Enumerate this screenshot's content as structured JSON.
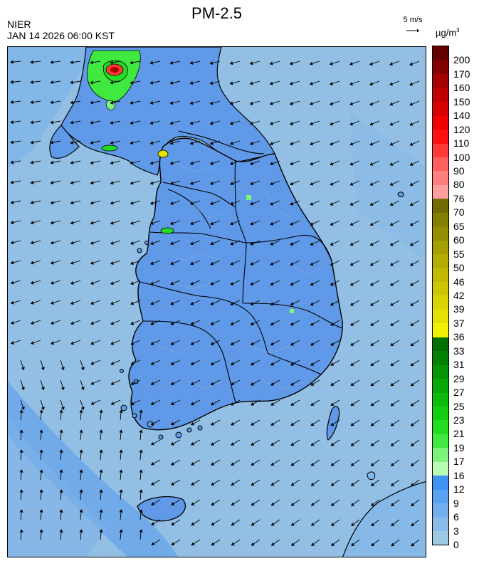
{
  "header": {
    "title": "PM-2.5",
    "agency": "NIER",
    "timestamp": "JAN 14 2026 06:00 KST",
    "wind_scale_label": "5 m/s",
    "unit_base": "µg/m",
    "unit_exp": "3"
  },
  "legend": {
    "levels": [
      "0",
      "3",
      "6",
      "9",
      "12",
      "16",
      "17",
      "19",
      "21",
      "23",
      "25",
      "27",
      "29",
      "31",
      "33",
      "36",
      "37",
      "39",
      "42",
      "46",
      "50",
      "55",
      "60",
      "65",
      "70",
      "76",
      "80",
      "90",
      "100",
      "110",
      "120",
      "140",
      "150",
      "160",
      "170",
      "200"
    ],
    "colors": [
      "#9dc9e3",
      "#8abbe9",
      "#73aeee",
      "#5aa2f0",
      "#3f92f2",
      "#b8f9b3",
      "#7df27d",
      "#3fe93f",
      "#22dd22",
      "#12cd12",
      "#0dbb0d",
      "#08a808",
      "#059605",
      "#038103",
      "#016e01",
      "#f2f200",
      "#e5e100",
      "#d9d400",
      "#ccc600",
      "#c1ba00",
      "#b4ac00",
      "#a59e00",
      "#958e00",
      "#857f00",
      "#726c00",
      "#ff9e9e",
      "#ff7f7f",
      "#ff5f5f",
      "#ff3838",
      "#ff0f0f",
      "#f00000",
      "#d90000",
      "#c00000",
      "#a40000",
      "#850000",
      "#650000"
    ]
  }
}
